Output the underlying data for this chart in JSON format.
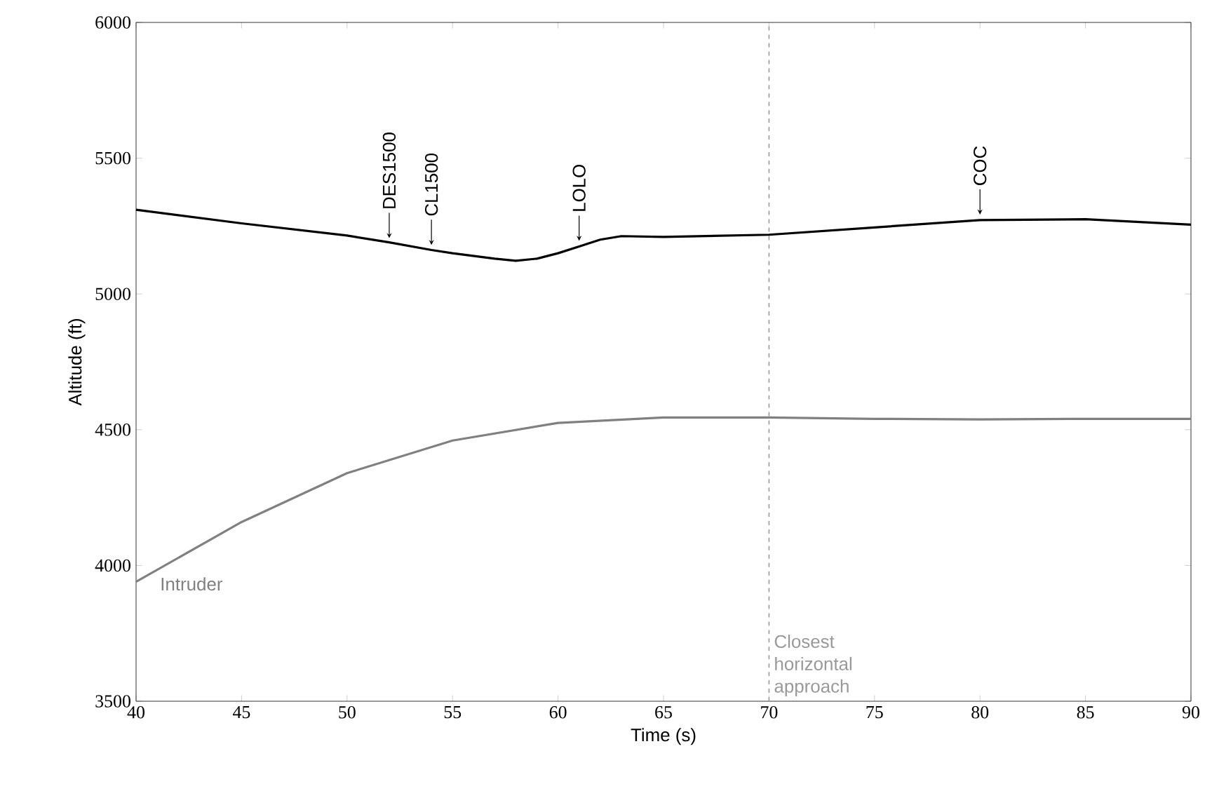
{
  "chart_data": {
    "type": "line",
    "xlabel": "Time (s)",
    "ylabel": "Altitude (ft)",
    "xlim": [
      40,
      90
    ],
    "ylim": [
      3500,
      6000
    ],
    "xticks": [
      40,
      45,
      50,
      55,
      60,
      65,
      70,
      75,
      80,
      85,
      90
    ],
    "yticks": [
      3500,
      4000,
      4500,
      5000,
      5500,
      6000
    ],
    "series": [
      {
        "color": "#000000",
        "x": [
          40,
          45,
          50,
          52,
          54,
          55,
          57,
          58,
          59,
          60,
          61,
          62,
          63,
          65,
          70,
          75,
          80,
          85,
          90
        ],
        "values": [
          5310,
          5260,
          5215,
          5190,
          5162,
          5150,
          5130,
          5122,
          5130,
          5150,
          5175,
          5200,
          5213,
          5210,
          5218,
          5245,
          5272,
          5275,
          5255
        ]
      },
      {
        "name": "Intruder",
        "color": "#808080",
        "x": [
          40,
          45,
          50,
          55,
          60,
          65,
          70,
          75,
          80,
          85,
          90
        ],
        "values": [
          3940,
          4160,
          4340,
          4460,
          4525,
          4545,
          4545,
          4540,
          4538,
          4540,
          4540
        ]
      }
    ],
    "annotations": [
      {
        "text": "DES1500",
        "x": 52,
        "y": 5185
      },
      {
        "text": "CL1500",
        "x": 54,
        "y": 5160
      },
      {
        "text": "LOLO",
        "x": 61,
        "y": 5175
      },
      {
        "text": "COC",
        "x": 80,
        "y": 5272
      }
    ],
    "ref_lines": [
      {
        "axis": "x",
        "value": 70,
        "label": "Closest horizontal approach",
        "color": "#999999",
        "line_style": "dashed"
      }
    ]
  }
}
